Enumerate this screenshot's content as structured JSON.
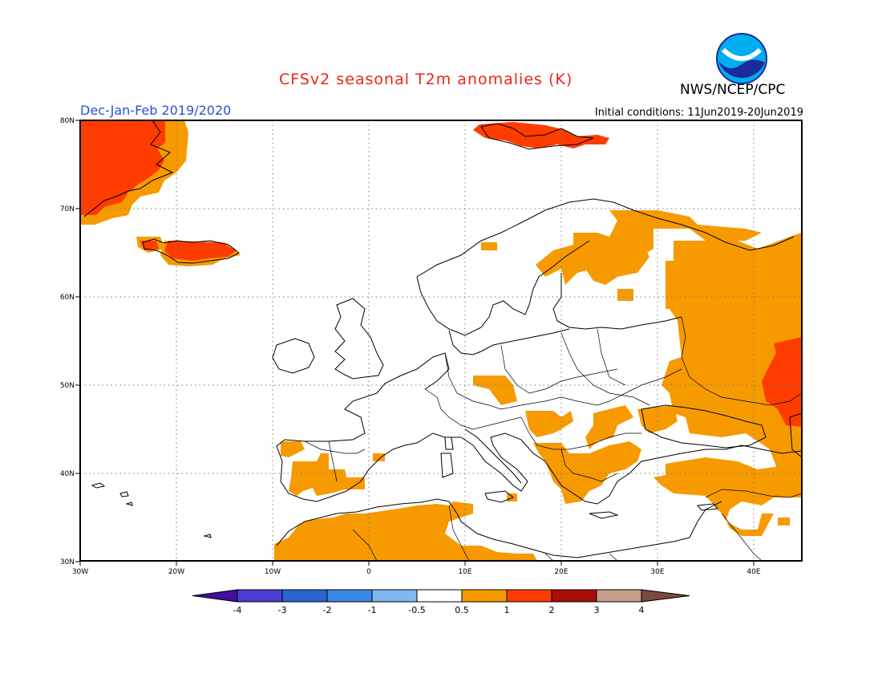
{
  "title": "CFSv2 seasonal T2m anomalies (K)",
  "agency": "NWS/NCEP/CPC",
  "logo_text": "NOAA",
  "period": "Dec-Jan-Feb 2019/2020",
  "initial_conditions": "Initial conditions: 11Jun2019-20Jun2019",
  "map": {
    "lat_labels": [
      "80N",
      "70N",
      "60N",
      "50N",
      "40N",
      "30N"
    ],
    "lon_labels": [
      "30W",
      "20W",
      "10W",
      "0",
      "10E",
      "20E",
      "30E",
      "40E"
    ],
    "region": "Europe, North Africa, Middle East"
  },
  "colorbar": {
    "tick_labels": [
      "-4",
      "-3",
      "-2",
      "-1",
      "-0.5",
      "0.5",
      "1",
      "2",
      "3",
      "4"
    ],
    "colors": [
      "#3f0fa0",
      "#4b3dcf",
      "#2c64d2",
      "#3a8ae4",
      "#7fb9ef",
      "#ffffff",
      "#f79a00",
      "#ff3c00",
      "#a80e0a",
      "#c79e8c",
      "#7a4a3c"
    ]
  }
}
